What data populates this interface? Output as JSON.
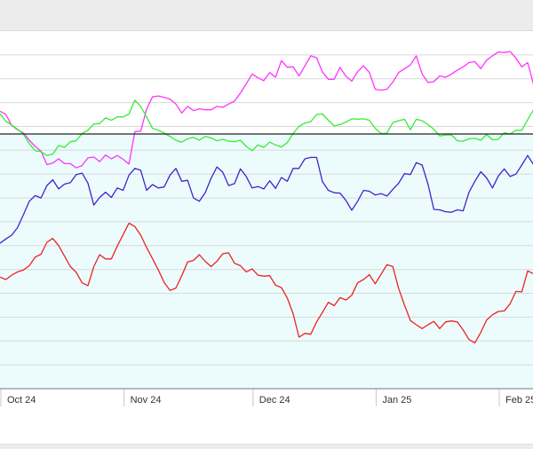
{
  "chart_data": {
    "type": "line",
    "x_tick_labels": [
      "Oct 24",
      "Nov 24",
      "Dec 24",
      "Jan 25",
      "Feb 25"
    ],
    "x_tick_index": [
      0,
      21,
      43,
      64,
      85
    ],
    "grid": true,
    "colors": {
      "upper_background": "#ffffff",
      "lower_background": "#ecfcfd",
      "grid": "#d8d8d8",
      "reference_line": "#222222",
      "axis": "#777777"
    },
    "series": [
      {
        "color": "#ff33ff",
        "values": [
          128.2,
          127.5,
          125.2,
          124.3,
          123.6,
          122.1,
          120.8,
          119.8,
          117.0,
          117.3,
          118.2,
          117.2,
          117.2,
          116.3,
          116.8,
          118.4,
          118.6,
          117.6,
          119.0,
          118.2,
          118.9,
          118.1,
          117.1,
          123.9,
          124.0,
          128.6,
          131.2,
          131.4,
          131.1,
          130.7,
          129.7,
          127.8,
          129.2,
          128.3,
          128.7,
          128.5,
          128.5,
          129.2,
          129.0,
          129.7,
          130.3,
          132.0,
          133.9,
          136.0,
          135.2,
          134.6,
          136.3,
          135.3,
          138.8,
          137.4,
          137.5,
          135.6,
          137.7,
          139.8,
          139.4,
          136.4,
          134.9,
          134.9,
          137.4,
          135.5,
          134.5,
          136.5,
          137.7,
          136.3,
          132.8,
          132.6,
          132.8,
          134.3,
          136.3,
          137.1,
          137.9,
          139.8,
          136.0,
          134.2,
          134.4,
          135.6,
          135.3,
          136.0,
          136.8,
          137.5,
          138.4,
          138.6,
          137.1,
          138.9,
          139.8,
          140.6,
          140.5,
          140.7,
          139.3,
          137.5,
          138.4,
          133.8,
          132.6
        ]
      },
      {
        "color": "#33ee33",
        "values": [
          127.7,
          126.1,
          125.3,
          124.4,
          123.4,
          121.4,
          119.9,
          119.7,
          118.9,
          119.2,
          121.0,
          120.6,
          121.8,
          122.0,
          123.5,
          124.2,
          125.5,
          125.6,
          126.8,
          126.3,
          127.0,
          127.0,
          127.6,
          130.5,
          129.2,
          127.0,
          124.6,
          124.2,
          123.6,
          122.9,
          122.1,
          121.7,
          122.4,
          122.7,
          122.1,
          122.9,
          122.6,
          122.0,
          122.3,
          121.9,
          121.8,
          122.1,
          120.8,
          119.9,
          121.1,
          120.6,
          121.7,
          121.1,
          120.7,
          121.6,
          123.5,
          125.0,
          125.7,
          126.0,
          127.5,
          127.6,
          126.3,
          125.1,
          125.4,
          125.9,
          126.6,
          126.5,
          126.6,
          126.3,
          124.6,
          123.5,
          123.6,
          125.8,
          126.2,
          126.5,
          124.3,
          126.5,
          126.2,
          125.4,
          124.4,
          123.0,
          123.2,
          123.2,
          122.0,
          121.9,
          122.4,
          122.5,
          122.1,
          123.3,
          122.2,
          122.3,
          123.7,
          123.4,
          124.2,
          124.2,
          126.4,
          128.5,
          128.4
        ]
      },
      {
        "color": "#4422cc",
        "values": [
          100.5,
          101.4,
          102.2,
          103.8,
          106.5,
          109.3,
          110.5,
          110.0,
          112.6,
          113.8,
          111.9,
          112.9,
          113.2,
          114.9,
          115.2,
          113.1,
          108.5,
          110.1,
          111.2,
          110.1,
          112.1,
          111.6,
          114.8,
          116.2,
          115.8,
          111.6,
          112.8,
          112.1,
          112.3,
          114.8,
          116.2,
          113.5,
          113.7,
          110.0,
          109.3,
          111.1,
          114.1,
          116.5,
          115.4,
          112.6,
          113.0,
          116.1,
          114.5,
          112.1,
          112.4,
          111.9,
          113.6,
          112.0,
          114.3,
          113.5,
          116.2,
          116.2,
          118.2,
          118.5,
          118.5,
          113.4,
          111.6,
          111.1,
          111.0,
          109.5,
          107.4,
          109.3,
          111.6,
          111.4,
          110.6,
          110.9,
          110.4,
          111.8,
          113.1,
          115.1,
          114.9,
          117.4,
          116.9,
          112.9,
          107.6,
          107.5,
          107.1,
          107.0,
          107.5,
          107.3,
          111.2,
          113.5,
          115.5,
          114.2,
          112.1,
          114.6,
          116.1,
          114.5,
          115.0,
          116.9,
          118.9,
          117.0,
          115.1
        ]
      },
      {
        "color": "#ee2222",
        "values": [
          93.4,
          92.9,
          93.8,
          94.5,
          94.9,
          95.8,
          97.6,
          98.2,
          100.7,
          101.5,
          100.0,
          97.8,
          95.6,
          94.4,
          92.2,
          91.6,
          95.6,
          98.1,
          97.2,
          97.2,
          99.9,
          102.3,
          104.7,
          104.0,
          102.2,
          99.6,
          97.3,
          94.9,
          92.3,
          90.6,
          91.1,
          93.7,
          96.6,
          96.9,
          98.1,
          96.7,
          95.6,
          96.7,
          98.3,
          98.5,
          96.3,
          95.8,
          94.5,
          95.1,
          93.8,
          93.6,
          93.7,
          91.7,
          91.2,
          89.0,
          85.7,
          80.8,
          81.6,
          81.4,
          84.0,
          86.0,
          88.1,
          87.4,
          89.1,
          88.6,
          89.6,
          92.2,
          92.9,
          93.9,
          92.0,
          94.0,
          96.0,
          95.6,
          91.0,
          87.5,
          84.3,
          83.4,
          82.6,
          83.4,
          84.1,
          82.6,
          84.0,
          84.2,
          84.0,
          82.3,
          80.3,
          79.6,
          81.8,
          84.4,
          85.5,
          86.2,
          86.3,
          87.8,
          90.4,
          90.3,
          94.7,
          94.1,
          92.0
        ]
      }
    ]
  }
}
